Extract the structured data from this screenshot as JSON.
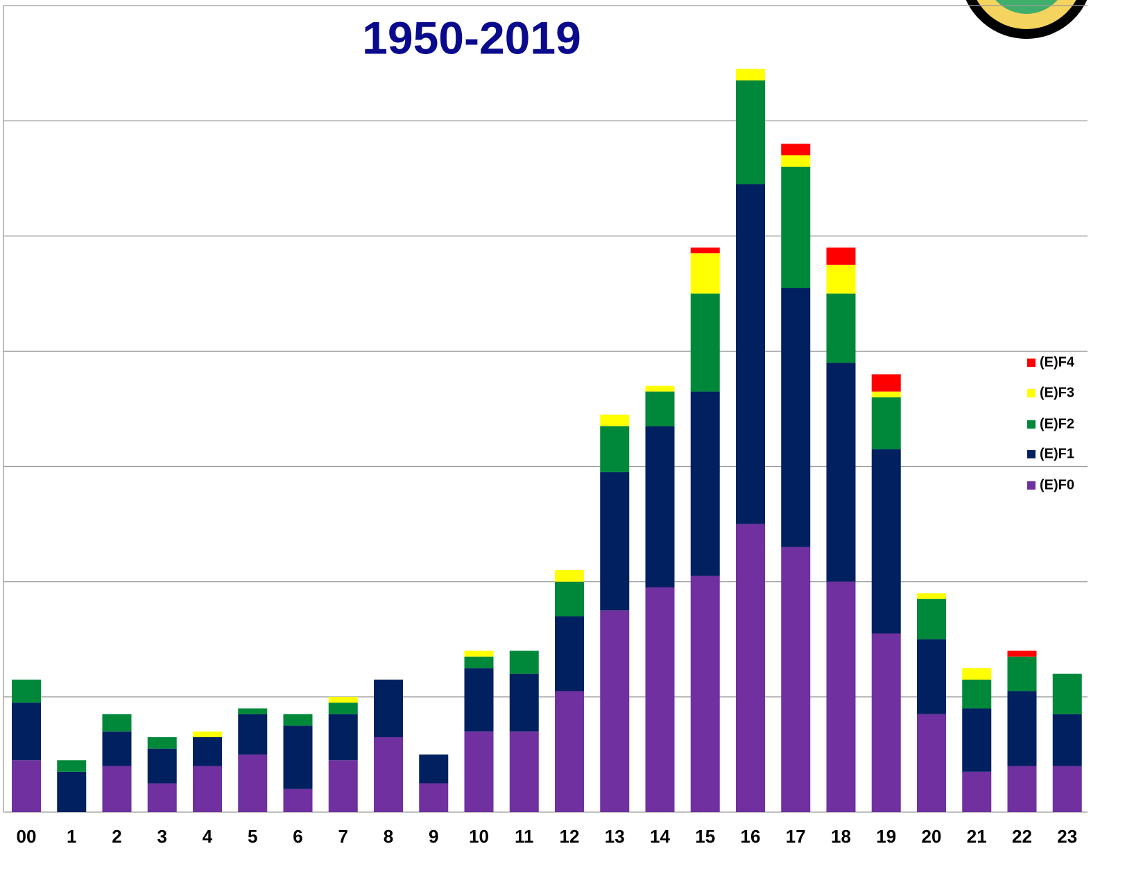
{
  "chart_data": {
    "type": "stacked_bar",
    "title": "1950-2019",
    "categories": [
      "00",
      "1",
      "2",
      "3",
      "4",
      "5",
      "6",
      "7",
      "8",
      "9",
      "10",
      "11",
      "12",
      "13",
      "14",
      "15",
      "16",
      "17",
      "18",
      "19",
      "20",
      "21",
      "22",
      "23"
    ],
    "series": [
      {
        "name": "(E)F0",
        "color": "#7030a0",
        "values": [
          4.5,
          0,
          4,
          2.5,
          4,
          5,
          2,
          4.5,
          6.5,
          2.5,
          7,
          7,
          10.5,
          17.5,
          19.5,
          20.5,
          25,
          23,
          20,
          15.5,
          8.5,
          3.5,
          4,
          4
        ]
      },
      {
        "name": "(E)F1",
        "color": "#002060",
        "values": [
          5,
          3.5,
          3,
          3,
          2.5,
          3.5,
          5.5,
          4,
          5,
          2.5,
          5.5,
          5,
          6.5,
          12,
          14,
          16,
          29.5,
          22.5,
          19,
          16,
          6.5,
          5.5,
          6.5,
          4.5
        ]
      },
      {
        "name": "(E)F2",
        "color": "#00883a",
        "values": [
          2,
          1,
          1.5,
          1,
          0,
          0.5,
          1,
          1,
          0,
          0,
          1,
          2,
          3,
          4,
          3,
          8.5,
          9,
          10.5,
          6,
          4.5,
          3.5,
          2.5,
          3,
          3.5
        ]
      },
      {
        "name": "(E)F3",
        "color": "#ffff00",
        "values": [
          0,
          0,
          0,
          0,
          0.5,
          0,
          0,
          0.5,
          0,
          0,
          0.5,
          0,
          1,
          1,
          0.5,
          3.5,
          1,
          1,
          2.5,
          0.5,
          0.5,
          1,
          0,
          0
        ]
      },
      {
        "name": "(E)F4",
        "color": "#ff0000",
        "values": [
          0,
          0,
          0,
          0,
          0,
          0,
          0,
          0,
          0,
          0,
          0,
          0,
          0,
          0,
          0,
          0.5,
          0,
          1,
          1.5,
          1.5,
          0,
          0,
          0.5,
          0
        ]
      }
    ],
    "ylim": [
      0,
      70
    ],
    "yticks": [
      0,
      10,
      20,
      30,
      40,
      50,
      60,
      70
    ],
    "grid": true,
    "legend": "right"
  }
}
